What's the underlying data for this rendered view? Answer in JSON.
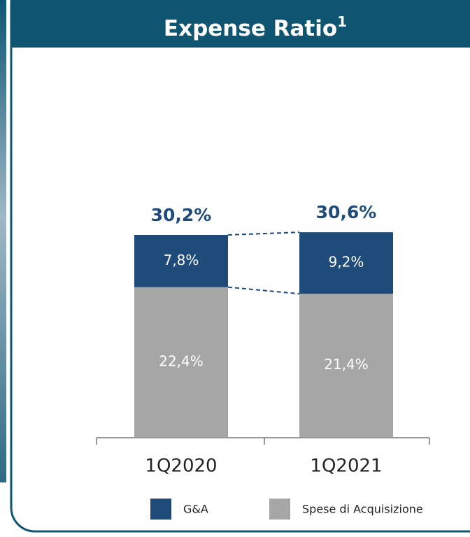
{
  "chart_data": {
    "type": "stacked_bar",
    "title": "Expense Ratio",
    "title_note": "1",
    "categories": [
      "1Q2020",
      "1Q2021"
    ],
    "series": [
      {
        "name": "Spese di Acquisizione",
        "color": "#a6a6a6",
        "values": [
          22.4,
          21.4
        ],
        "value_labels": [
          "22,4%",
          "21,4%"
        ]
      },
      {
        "name": "G&A",
        "color": "#1f4b7b",
        "values": [
          7.8,
          9.2
        ],
        "value_labels": [
          "7,8%",
          "9,2%"
        ]
      }
    ],
    "totals": [
      30.2,
      30.6
    ],
    "total_labels": [
      "30,2%",
      "30,6%"
    ]
  }
}
